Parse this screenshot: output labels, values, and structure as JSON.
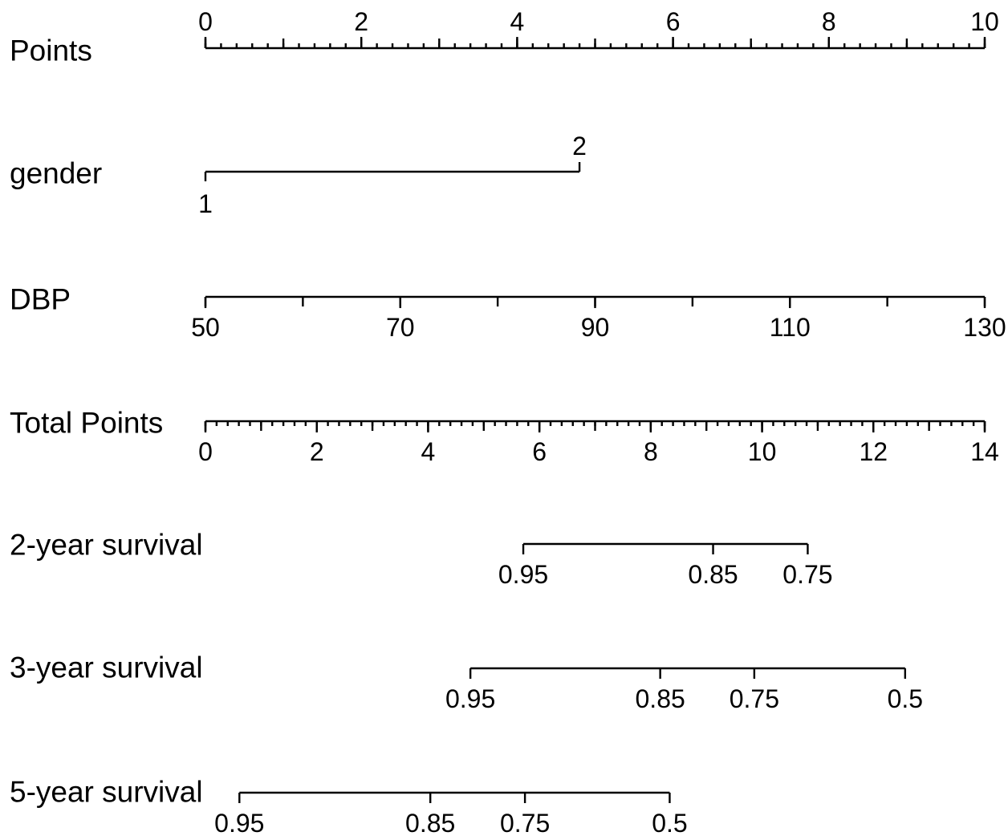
{
  "chart_data": {
    "type": "nomogram",
    "grid": false,
    "rows": [
      {
        "label": "Points",
        "kind": "scale",
        "labels_position": "above",
        "range": [
          0,
          10
        ],
        "major_ticks": [
          "0",
          "2",
          "4",
          "6",
          "8",
          "10"
        ],
        "major_values": [
          0,
          2,
          4,
          6,
          8,
          10
        ],
        "medium_step": 1,
        "minor_step": 0.2
      },
      {
        "label": "gender",
        "kind": "categorical",
        "ticks": [
          {
            "label": "1",
            "points": 0,
            "side": "below"
          },
          {
            "label": "2",
            "points": 4.8,
            "side": "above"
          }
        ]
      },
      {
        "label": "DBP",
        "kind": "scale",
        "labels_position": "below",
        "range": [
          50,
          130
        ],
        "points_range": [
          0,
          10
        ],
        "major_ticks": [
          "50",
          "70",
          "90",
          "110",
          "130"
        ],
        "major_values": [
          50,
          70,
          90,
          110,
          130
        ],
        "medium_step": 10
      },
      {
        "label": "Total Points",
        "kind": "scale",
        "labels_position": "below",
        "range": [
          0,
          14
        ],
        "major_ticks": [
          "0",
          "2",
          "4",
          "6",
          "8",
          "10",
          "12",
          "14"
        ],
        "major_values": [
          0,
          2,
          4,
          6,
          8,
          10,
          12,
          14
        ],
        "medium_step": 1,
        "minor_step": 0.2
      },
      {
        "label": "2-year survival",
        "kind": "probability",
        "ticks": [
          {
            "label": "0.95",
            "total_points": 5.71
          },
          {
            "label": "0.85",
            "total_points": 9.12
          },
          {
            "label": "0.75",
            "total_points": 10.82
          }
        ]
      },
      {
        "label": "3-year survival",
        "kind": "probability",
        "ticks": [
          {
            "label": "0.95",
            "total_points": 4.76
          },
          {
            "label": "0.85",
            "total_points": 8.17
          },
          {
            "label": "0.75",
            "total_points": 9.86
          },
          {
            "label": "0.5",
            "total_points": 12.57
          }
        ]
      },
      {
        "label": "5-year survival",
        "kind": "probability",
        "ticks": [
          {
            "label": "0.95",
            "total_points": 0.61
          },
          {
            "label": "0.85",
            "total_points": 4.04
          },
          {
            "label": "0.75",
            "total_points": 5.74
          },
          {
            "label": "0.5",
            "total_points": 8.34
          }
        ]
      }
    ]
  }
}
